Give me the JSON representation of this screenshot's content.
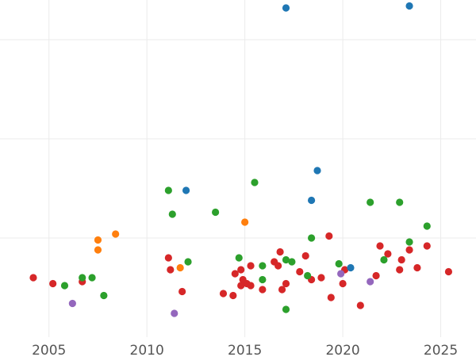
{
  "chart_data": {
    "type": "scatter",
    "title": "",
    "xlabel": "",
    "ylabel": "",
    "xlim": [
      2002.5,
      2026.8
    ],
    "ylim": [
      0,
      17
    ],
    "x_ticks": [
      2005,
      2010,
      2015,
      2020,
      2025
    ],
    "x_tick_labels": [
      "2005",
      "2010",
      "2015",
      "2020",
      "2025"
    ],
    "y_gridlines": [
      5,
      10,
      15
    ],
    "grid": true,
    "legend": "none",
    "series": [
      {
        "color": "#d62728",
        "points": [
          [
            2004.2,
            3.0
          ],
          [
            2005.2,
            2.7
          ],
          [
            2006.7,
            2.8
          ],
          [
            2011.1,
            4.0
          ],
          [
            2011.2,
            3.4
          ],
          [
            2011.8,
            2.3
          ],
          [
            2013.9,
            2.2
          ],
          [
            2014.4,
            2.1
          ],
          [
            2014.5,
            3.2
          ],
          [
            2014.8,
            2.6
          ],
          [
            2014.8,
            3.4
          ],
          [
            2014.9,
            2.9
          ],
          [
            2015.1,
            2.7
          ],
          [
            2015.3,
            2.6
          ],
          [
            2015.3,
            3.6
          ],
          [
            2015.9,
            2.4
          ],
          [
            2016.5,
            3.8
          ],
          [
            2016.7,
            3.6
          ],
          [
            2016.8,
            4.3
          ],
          [
            2016.9,
            2.4
          ],
          [
            2017.1,
            2.7
          ],
          [
            2017.8,
            3.3
          ],
          [
            2018.1,
            4.1
          ],
          [
            2018.4,
            2.9
          ],
          [
            2018.9,
            3.0
          ],
          [
            2019.3,
            5.1
          ],
          [
            2019.4,
            2.0
          ],
          [
            2020.0,
            2.7
          ],
          [
            2020.1,
            3.4
          ],
          [
            2020.9,
            1.6
          ],
          [
            2021.7,
            3.1
          ],
          [
            2021.9,
            4.6
          ],
          [
            2022.3,
            4.2
          ],
          [
            2022.9,
            3.4
          ],
          [
            2023.0,
            3.9
          ],
          [
            2023.4,
            4.4
          ],
          [
            2023.8,
            3.5
          ],
          [
            2024.3,
            4.6
          ],
          [
            2025.4,
            3.3
          ]
        ]
      },
      {
        "color": "#2ca02c",
        "points": [
          [
            2005.8,
            2.6
          ],
          [
            2006.7,
            3.0
          ],
          [
            2007.2,
            3.0
          ],
          [
            2007.8,
            2.1
          ],
          [
            2011.1,
            7.4
          ],
          [
            2011.3,
            6.2
          ],
          [
            2012.1,
            3.8
          ],
          [
            2013.5,
            6.3
          ],
          [
            2014.7,
            4.0
          ],
          [
            2015.5,
            7.8
          ],
          [
            2015.9,
            2.9
          ],
          [
            2015.9,
            3.6
          ],
          [
            2017.1,
            3.9
          ],
          [
            2017.1,
            1.4
          ],
          [
            2017.4,
            3.8
          ],
          [
            2018.2,
            3.1
          ],
          [
            2018.4,
            5.0
          ],
          [
            2019.8,
            3.7
          ],
          [
            2021.4,
            6.8
          ],
          [
            2022.1,
            3.9
          ],
          [
            2022.9,
            6.8
          ],
          [
            2023.4,
            4.8
          ],
          [
            2024.3,
            5.6
          ]
        ]
      },
      {
        "color": "#1f77b4",
        "points": [
          [
            2012.0,
            7.4
          ],
          [
            2017.1,
            16.6
          ],
          [
            2018.4,
            6.9
          ],
          [
            2018.7,
            8.4
          ],
          [
            2020.4,
            3.5
          ],
          [
            2023.4,
            16.7
          ]
        ]
      },
      {
        "color": "#ff7f0e",
        "points": [
          [
            2007.5,
            4.4
          ],
          [
            2007.5,
            4.9
          ],
          [
            2008.4,
            5.2
          ],
          [
            2011.7,
            3.5
          ],
          [
            2015.0,
            5.8
          ]
        ]
      },
      {
        "color": "#9467bd",
        "points": [
          [
            2006.2,
            1.7
          ],
          [
            2011.4,
            1.2
          ],
          [
            2019.9,
            3.2
          ],
          [
            2021.4,
            2.8
          ]
        ]
      }
    ]
  }
}
